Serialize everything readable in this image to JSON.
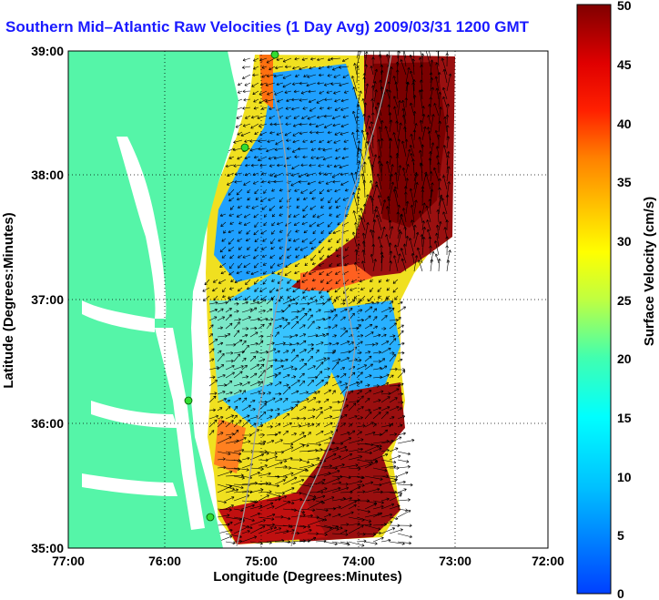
{
  "title": "Southern Mid–Atlantic Raw Velocities (1 Day Avg) 2009/03/31 1200 GMT",
  "xlabel": "Longitude (Degrees:Minutes)",
  "ylabel": "Latitude (Degrees:Minutes)",
  "x_ticks": [
    "77:00",
    "76:00",
    "75:00",
    "74:00",
    "73:00",
    "72:00"
  ],
  "y_ticks": [
    "39:00",
    "38:00",
    "37:00",
    "36:00",
    "35:00"
  ],
  "colorbar": {
    "label": "Surface Velocity (cm/s)",
    "ticks": [
      "50",
      "45",
      "40",
      "35",
      "30",
      "25",
      "20",
      "15",
      "10",
      "5",
      "0"
    ],
    "range": [
      0,
      50
    ],
    "units": "cm/s"
  },
  "colors": {
    "land": "#55f5a8",
    "title": "#1a1aff",
    "grid": "#000000"
  },
  "chart_data": {
    "type": "heatmap",
    "xlim": [
      "77:00",
      "72:00"
    ],
    "ylim": [
      "35:00",
      "39:00"
    ],
    "grid": true
  }
}
